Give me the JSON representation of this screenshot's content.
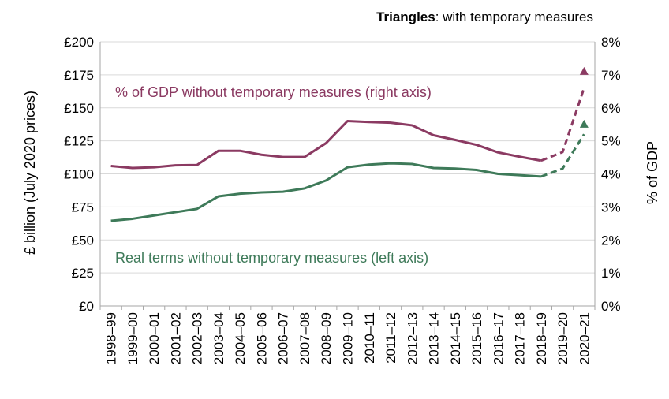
{
  "chart_data": {
    "type": "line",
    "note_bold": "Triangles",
    "note_rest": ": with temporary measures",
    "ylabel_left": "£ billion (July 2020 prices)",
    "ylabel_right": "% of GDP",
    "yticks_left": [
      "£0",
      "£25",
      "£50",
      "£75",
      "£100",
      "£125",
      "£150",
      "£175",
      "£200"
    ],
    "yticks_right": [
      "0%",
      "1%",
      "2%",
      "3%",
      "4%",
      "5%",
      "6%",
      "7%",
      "8%"
    ],
    "ylim_left": [
      0,
      200
    ],
    "ylim_right": [
      0,
      8
    ],
    "grid": true,
    "categories": [
      "1998–99",
      "1999–00",
      "2000–01",
      "2001–02",
      "2002–03",
      "2003–04",
      "2004–05",
      "2005–06",
      "2006–07",
      "2007–08",
      "2008–09",
      "2009–10",
      "2010–11",
      "2011–12",
      "2012–13",
      "2013–14",
      "2014–15",
      "2015–16",
      "2016–17",
      "2017–18",
      "2018–19",
      "2019–20",
      "2020–21"
    ],
    "series": [
      {
        "name": "% of GDP without temporary measures (right axis)",
        "axis": "right",
        "color": "#8b3a62",
        "values": [
          4.24,
          4.18,
          4.2,
          4.26,
          4.27,
          4.7,
          4.7,
          4.58,
          4.51,
          4.51,
          4.93,
          5.6,
          5.57,
          5.55,
          5.47,
          5.17,
          5.03,
          4.88,
          4.65,
          4.52,
          4.4,
          4.66,
          6.6
        ],
        "dashed_from_index": 20,
        "with_temporary_measures": 7.12
      },
      {
        "name": "Real terms without temporary measures (left axis)",
        "axis": "left",
        "color": "#3e7a59",
        "values": [
          64.5,
          66,
          68.5,
          71,
          73.5,
          83,
          85,
          86,
          86.5,
          89,
          95,
          105,
          107,
          108,
          107.5,
          104.5,
          104,
          103,
          100,
          99,
          98,
          104,
          130
        ],
        "dashed_from_index": 20,
        "with_temporary_measures": 138
      }
    ]
  }
}
